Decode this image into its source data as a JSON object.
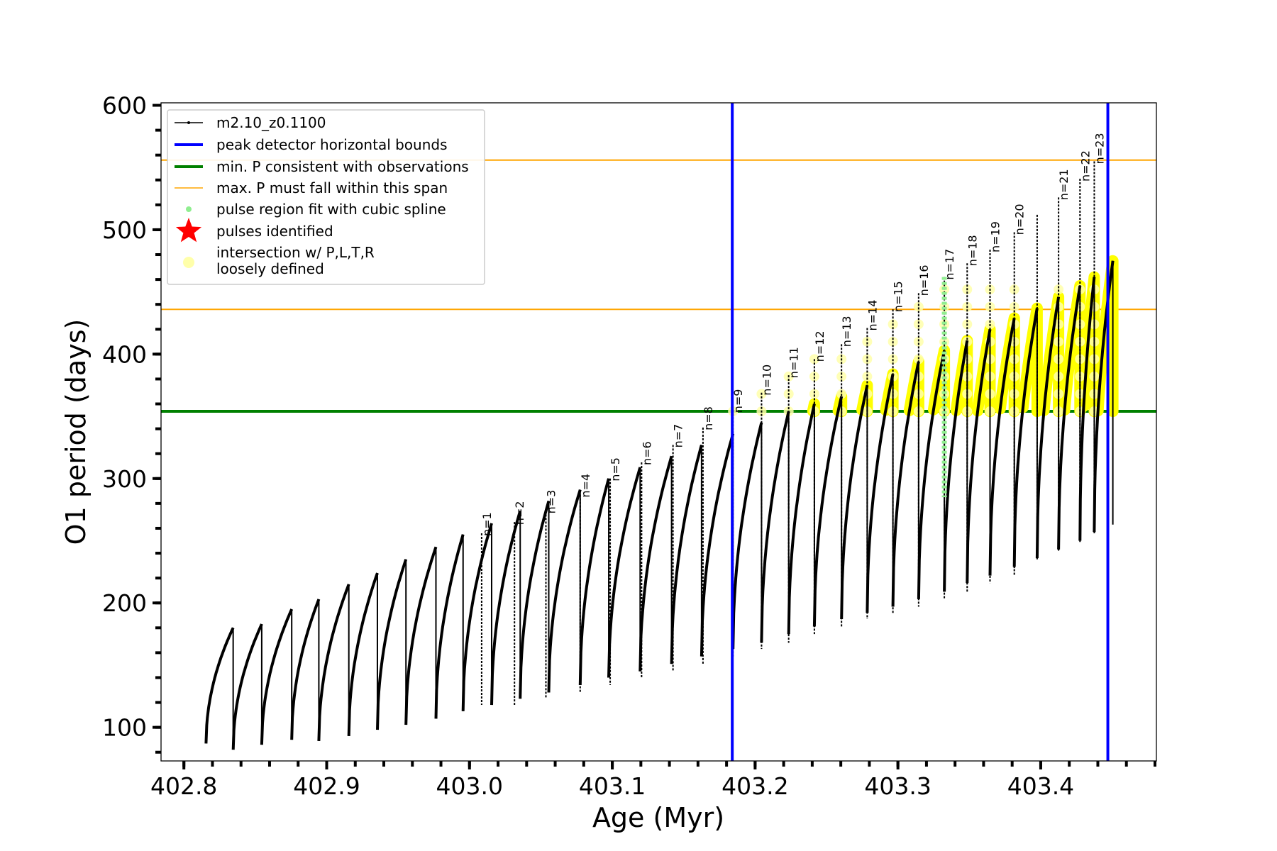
{
  "chart_data": {
    "type": "line",
    "xlabel": "Age (Myr)",
    "ylabel": "O1 period (days)",
    "xlim": [
      402.784,
      403.481
    ],
    "ylim": [
      73,
      602
    ],
    "xticks": [
      402.8,
      402.9,
      403.0,
      403.1,
      403.2,
      403.3,
      403.4
    ],
    "xtick_labels": [
      "402.8",
      "402.9",
      "403.0",
      "403.1",
      "403.2",
      "403.3",
      "403.4"
    ],
    "x_minor_step": 0.02,
    "yticks": [
      100,
      200,
      300,
      400,
      500,
      600
    ],
    "ytick_labels": [
      "100",
      "200",
      "300",
      "400",
      "500",
      "600"
    ],
    "y_minor_step": 20,
    "grid": false,
    "legend_position": "top-left",
    "legend": [
      {
        "label": "m2.10_z0.1100",
        "marker": "line-dot",
        "color": "#000000"
      },
      {
        "label": "peak detector horizontal bounds",
        "marker": "line",
        "color": "#0000ff"
      },
      {
        "label": "min. P consistent with observations",
        "marker": "line",
        "color": "#008000"
      },
      {
        "label": "max. P must fall within this span",
        "marker": "thin-line",
        "color": "#ffa500"
      },
      {
        "label": "pulse region fit with cubic spline",
        "marker": "dot",
        "color": "#90ee90"
      },
      {
        "label": "pulses identified",
        "marker": "star",
        "color": "#ff0000"
      },
      {
        "label": "intersection w/ P,L,T,R",
        "label2": "loosely defined",
        "marker": "circle",
        "color": "#ffffaa"
      }
    ],
    "vlines": [
      {
        "x": 403.184,
        "color": "#0000ff"
      },
      {
        "x": 403.447,
        "color": "#0000ff"
      }
    ],
    "hlines": [
      {
        "y": 354,
        "color": "#008000"
      },
      {
        "y": 436,
        "color": "#ffa500"
      },
      {
        "y": 556,
        "color": "#ffa500"
      }
    ],
    "series": [
      {
        "type": "sawtooth",
        "color": "#000000",
        "pulses": [
          {
            "start": 402.8155,
            "end": 402.8345,
            "min": 87,
            "max": 180
          },
          {
            "start": 402.8345,
            "end": 402.8545,
            "min": 82,
            "max": 183
          },
          {
            "start": 402.8545,
            "end": 402.8755,
            "min": 86,
            "max": 195
          },
          {
            "start": 402.8755,
            "end": 402.8945,
            "min": 90,
            "max": 203
          },
          {
            "start": 402.8945,
            "end": 402.9155,
            "min": 89,
            "max": 215
          },
          {
            "start": 402.9155,
            "end": 402.9355,
            "min": 93,
            "max": 224
          },
          {
            "start": 402.9355,
            "end": 402.9555,
            "min": 98,
            "max": 235
          },
          {
            "start": 402.9555,
            "end": 402.9765,
            "min": 102,
            "max": 245
          },
          {
            "start": 402.9765,
            "end": 402.9955,
            "min": 107,
            "max": 255
          },
          {
            "start": 402.9955,
            "end": 403.0155,
            "min": 113,
            "max": 264
          },
          {
            "start": 403.0155,
            "end": 403.0355,
            "min": 118,
            "max": 274
          },
          {
            "start": 403.0355,
            "end": 403.0555,
            "min": 123,
            "max": 282
          },
          {
            "start": 403.0555,
            "end": 403.0775,
            "min": 128,
            "max": 291
          },
          {
            "start": 403.0775,
            "end": 403.0975,
            "min": 134,
            "max": 300
          },
          {
            "start": 403.0975,
            "end": 403.1195,
            "min": 140,
            "max": 309
          },
          {
            "start": 403.1195,
            "end": 403.1415,
            "min": 145,
            "max": 318
          },
          {
            "start": 403.1415,
            "end": 403.1625,
            "min": 151,
            "max": 327
          },
          {
            "start": 403.1625,
            "end": 403.1845,
            "min": 157,
            "max": 336
          },
          {
            "start": 403.1845,
            "end": 403.2045,
            "min": 163,
            "max": 345
          },
          {
            "start": 403.2045,
            "end": 403.2235,
            "min": 168,
            "max": 354
          },
          {
            "start": 403.2235,
            "end": 403.2415,
            "min": 175,
            "max": 360
          },
          {
            "start": 403.2415,
            "end": 403.2605,
            "min": 181,
            "max": 366
          },
          {
            "start": 403.2605,
            "end": 403.2785,
            "min": 187,
            "max": 375
          },
          {
            "start": 403.2785,
            "end": 403.2965,
            "min": 192,
            "max": 384
          },
          {
            "start": 403.2965,
            "end": 403.3145,
            "min": 197,
            "max": 394
          },
          {
            "start": 403.3145,
            "end": 403.3325,
            "min": 203,
            "max": 403
          },
          {
            "start": 403.3325,
            "end": 403.3485,
            "min": 209,
            "max": 411
          },
          {
            "start": 403.3485,
            "end": 403.3645,
            "min": 216,
            "max": 420
          },
          {
            "start": 403.3645,
            "end": 403.3815,
            "min": 222,
            "max": 429
          },
          {
            "start": 403.3815,
            "end": 403.3975,
            "min": 229,
            "max": 437
          },
          {
            "start": 403.3975,
            "end": 403.4125,
            "min": 236,
            "max": 446
          },
          {
            "start": 403.4125,
            "end": 403.4275,
            "min": 243,
            "max": 455
          },
          {
            "start": 403.4275,
            "end": 403.4375,
            "min": 250,
            "max": 462
          },
          {
            "start": 403.4375,
            "end": 403.4505,
            "min": 257,
            "max": 475
          }
        ]
      }
    ],
    "peaks": [
      {
        "label": "n=1",
        "x": 403.0085,
        "y": 256,
        "bottom": 118
      },
      {
        "label": "n=2",
        "x": 403.0315,
        "y": 265,
        "bottom": 118
      },
      {
        "label": "n=3",
        "x": 403.0535,
        "y": 274,
        "bottom": 123
      },
      {
        "label": "n=4",
        "x": 403.0775,
        "y": 287,
        "bottom": 128
      },
      {
        "label": "n=5",
        "x": 403.0985,
        "y": 300,
        "bottom": 134
      },
      {
        "label": "n=6",
        "x": 403.1205,
        "y": 313,
        "bottom": 140
      },
      {
        "label": "n=7",
        "x": 403.1425,
        "y": 327,
        "bottom": 145
      },
      {
        "label": "n=8",
        "x": 403.1635,
        "y": 341,
        "bottom": 151
      },
      {
        "label": "n=9",
        "x": 403.1845,
        "y": 355,
        "bottom": 157
      },
      {
        "label": "n=10",
        "x": 403.2045,
        "y": 369,
        "bottom": 163
      },
      {
        "label": "n=11",
        "x": 403.2235,
        "y": 383,
        "bottom": 168
      },
      {
        "label": "n=12",
        "x": 403.2415,
        "y": 396,
        "bottom": 175
      },
      {
        "label": "n=13",
        "x": 403.2605,
        "y": 408,
        "bottom": 181
      },
      {
        "label": "n=14",
        "x": 403.2785,
        "y": 421,
        "bottom": 187
      },
      {
        "label": "n=15",
        "x": 403.2965,
        "y": 436,
        "bottom": 192
      },
      {
        "label": "n=16",
        "x": 403.3145,
        "y": 449,
        "bottom": 197
      },
      {
        "label": "n=17",
        "x": 403.3325,
        "y": 462,
        "bottom": 203
      },
      {
        "label": "n=18",
        "x": 403.3485,
        "y": 473,
        "bottom": 209
      },
      {
        "label": "n=19",
        "x": 403.3645,
        "y": 484,
        "bottom": 216
      },
      {
        "label": "n=20",
        "x": 403.3815,
        "y": 498,
        "bottom": 222
      },
      {
        "label": "n=21",
        "x": 403.4125,
        "y": 526,
        "bottom": 243
      },
      {
        "label": "n=22",
        "x": 403.4275,
        "y": 541,
        "bottom": 250
      },
      {
        "label": "n=23",
        "x": 403.4375,
        "y": 555,
        "bottom": 257
      }
    ],
    "extra_spikes": [
      {
        "x": 403.3975,
        "y": 512,
        "bottom": 236
      }
    ],
    "green_spline_region": {
      "x": 403.3325,
      "y_from": 285,
      "y_to": 462
    }
  }
}
